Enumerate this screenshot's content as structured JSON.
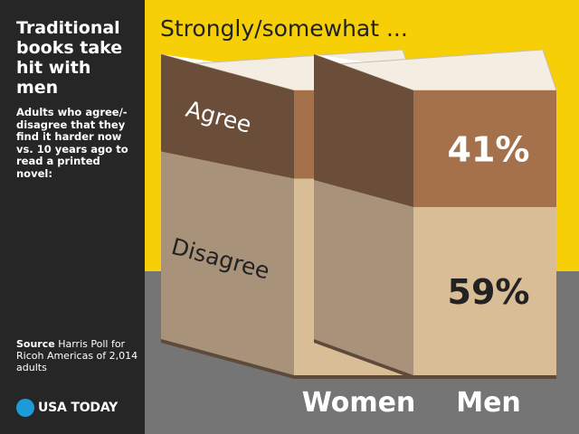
{
  "sidebar": {
    "title": "Traditional books take hit with men",
    "description": "Adults who agree/-disagree that they find it harder now vs. 10 years ago to read a printed novel:",
    "source_label": "Source",
    "source_text": " Harris Poll for Ricoh Americas of 2,014 adults",
    "logo_text": "USA TODAY"
  },
  "colors": {
    "yellow": "#f6cf07",
    "gray": "#757575",
    "sidebar": "#262626",
    "agree_front": "#a4714b",
    "agree_spine": "#6b4e3a",
    "disagree_front": "#d9bd96",
    "disagree_spine": "#a8927a",
    "logo": "#1b9bd7"
  },
  "chart_data": {
    "type": "bar",
    "title": "Strongly/somewhat ...",
    "categories": [
      "Women",
      "Men"
    ],
    "series": [
      {
        "name": "Agree",
        "values": [
          31,
          41
        ]
      },
      {
        "name": "Disagree",
        "values": [
          69,
          59
        ]
      }
    ],
    "value_suffix": "%",
    "stacked": true
  }
}
